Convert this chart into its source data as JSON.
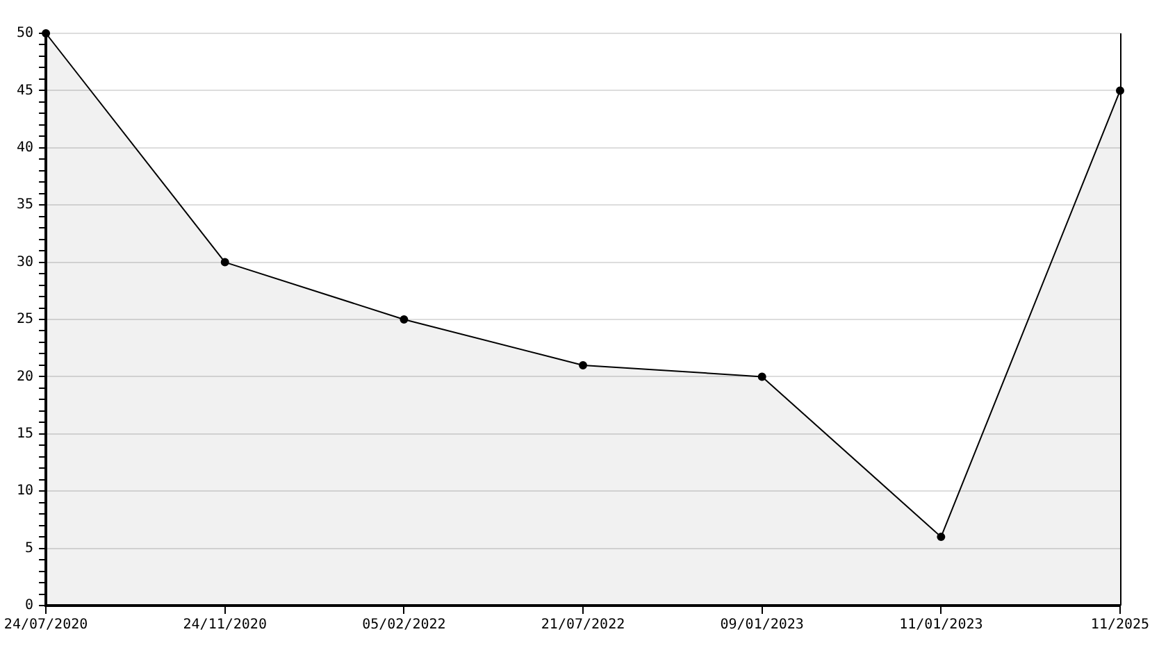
{
  "chart_data": {
    "type": "area",
    "categories": [
      "24/07/2020",
      "24/11/2020",
      "05/02/2022",
      "21/07/2022",
      "09/01/2023",
      "11/01/2023",
      "11/2025"
    ],
    "series": [
      {
        "color": "#000000",
        "values": [
          50,
          30,
          25,
          21,
          20,
          6,
          45
        ]
      }
    ],
    "ylim": [
      0,
      50
    ],
    "yticks": [
      0,
      {
        "value": 1,
        "label": null
      },
      {
        "value": 2,
        "label": null
      },
      {
        "value": 3,
        "label": null
      },
      {
        "value": 4,
        "label": null
      },
      5,
      {
        "value": 6,
        "label": null
      },
      {
        "value": 7,
        "label": null
      },
      {
        "value": 8,
        "label": null
      },
      {
        "value": 9,
        "label": null
      },
      10,
      {
        "value": 11,
        "label": null
      },
      {
        "value": 12,
        "label": null
      },
      {
        "value": 13,
        "label": null
      },
      {
        "value": 14,
        "label": null
      },
      15,
      {
        "value": 16,
        "label": null
      },
      {
        "value": 17,
        "label": null
      },
      {
        "value": 18,
        "label": null
      },
      {
        "value": 19,
        "label": null
      },
      20,
      {
        "value": 21,
        "label": null
      },
      {
        "value": 22,
        "label": null
      },
      {
        "value": 23,
        "label": null
      },
      {
        "value": 24,
        "label": null
      },
      25,
      {
        "value": 26,
        "label": null
      },
      {
        "value": 27,
        "label": null
      },
      {
        "value": 28,
        "label": null
      },
      {
        "value": 29,
        "label": null
      },
      30,
      {
        "value": 31,
        "label": null
      },
      {
        "value": 32,
        "label": null
      },
      {
        "value": 33,
        "label": null
      },
      {
        "value": 34,
        "label": null
      },
      35,
      {
        "value": 36,
        "label": null
      },
      {
        "value": 37,
        "label": null
      },
      {
        "value": 38,
        "label": null
      },
      {
        "value": 39,
        "label": null
      },
      40,
      {
        "value": 41,
        "label": null
      },
      {
        "value": 42,
        "label": null
      },
      {
        "value": 43,
        "label": null
      },
      {
        "value": 44,
        "label": null
      },
      45,
      {
        "value": 46,
        "label": null
      },
      {
        "value": 47,
        "label": null
      },
      {
        "value": 48,
        "label": null
      },
      {
        "value": 49,
        "label": null
      },
      50
    ],
    "grid": "y",
    "legend": false,
    "marker": "circle",
    "line_style": "solid"
  }
}
